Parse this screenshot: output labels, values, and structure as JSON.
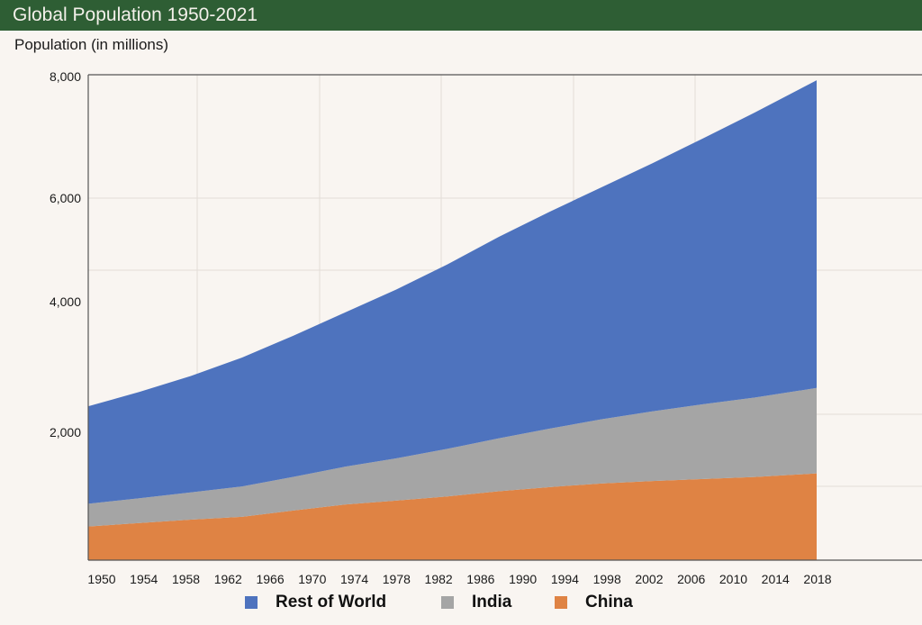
{
  "header": {
    "title": "Global Population 1950-2021"
  },
  "chart_data": {
    "type": "area",
    "stacked": true,
    "title": "Global Population 1950-2021",
    "ylabel": "Population (in millions)",
    "xlabel": "",
    "xlim": [
      1950,
      2021
    ],
    "ylim": [
      0,
      8000
    ],
    "y_ticks": [
      "8,000",
      "6,000",
      "4,000",
      "2,000"
    ],
    "y_tick_values": [
      8000,
      6000,
      4000,
      2000
    ],
    "x_ticks": [
      "1950",
      "1954",
      "1958",
      "1962",
      "1966",
      "1970",
      "1974",
      "1978",
      "1982",
      "1986",
      "1990",
      "1994",
      "1998",
      "2002",
      "2006",
      "2010",
      "2014",
      "2018"
    ],
    "grid": true,
    "legend_position": "bottom",
    "x": [
      1950,
      1955,
      1960,
      1965,
      1970,
      1975,
      1980,
      1985,
      1990,
      1995,
      2000,
      2005,
      2010,
      2015,
      2021
    ],
    "series": [
      {
        "name": "China",
        "color": "#df8344",
        "values": [
          554,
          612,
          667,
          715,
          818,
          916,
          981,
          1051,
          1135,
          1205,
          1264,
          1304,
          1338,
          1371,
          1430
        ]
      },
      {
        "name": "India",
        "color": "#a5a5a5",
        "values": [
          376,
          409,
          450,
          500,
          555,
          623,
          697,
          784,
          873,
          964,
          1057,
          1148,
          1234,
          1310,
          1408
        ]
      },
      {
        "name": "Rest of World",
        "color": "#4e73be",
        "values": [
          1606,
          1752,
          1918,
          2125,
          2327,
          2540,
          2780,
          3038,
          3319,
          3575,
          3822,
          4090,
          4385,
          4699,
          5071
        ]
      }
    ]
  },
  "legend": [
    {
      "label": "Rest of World",
      "color": "#4e73be"
    },
    {
      "label": "India",
      "color": "#a5a5a5"
    },
    {
      "label": "China",
      "color": "#df8344"
    }
  ],
  "colors": {
    "header": "#2e5e34",
    "background": "#f9f5f1"
  }
}
